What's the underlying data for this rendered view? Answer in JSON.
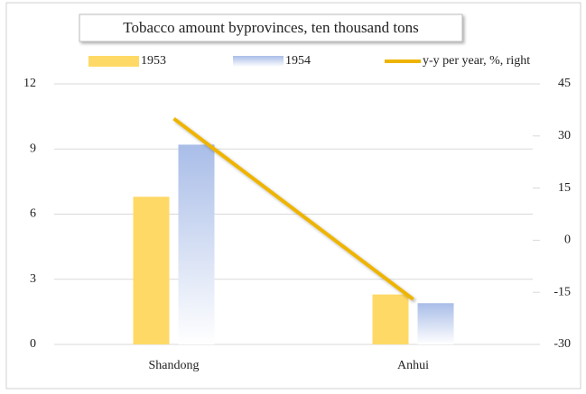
{
  "chart_data": {
    "type": "bar_line",
    "title": "Tobacco amount byprovinces, ten thousand tons",
    "categories": [
      "Shandong",
      "Anhui"
    ],
    "series": [
      {
        "name": "1953",
        "color": "#ffd966",
        "values": [
          6.8,
          2.3
        ]
      },
      {
        "name": "1954",
        "color": "#a9bde8",
        "values": [
          9.2,
          1.9
        ]
      },
      {
        "name": "y-y per year, %, right",
        "color": "#eeb400",
        "values": [
          35,
          -17
        ],
        "axis": "y2",
        "type": "line"
      }
    ],
    "ylim": [
      0,
      12
    ],
    "yticks": [
      0,
      3,
      6,
      9,
      12
    ],
    "y2lim": [
      -30,
      45
    ],
    "y2ticks": [
      -30,
      -15,
      0,
      15,
      30,
      45
    ],
    "grid": true,
    "legend": "top"
  }
}
